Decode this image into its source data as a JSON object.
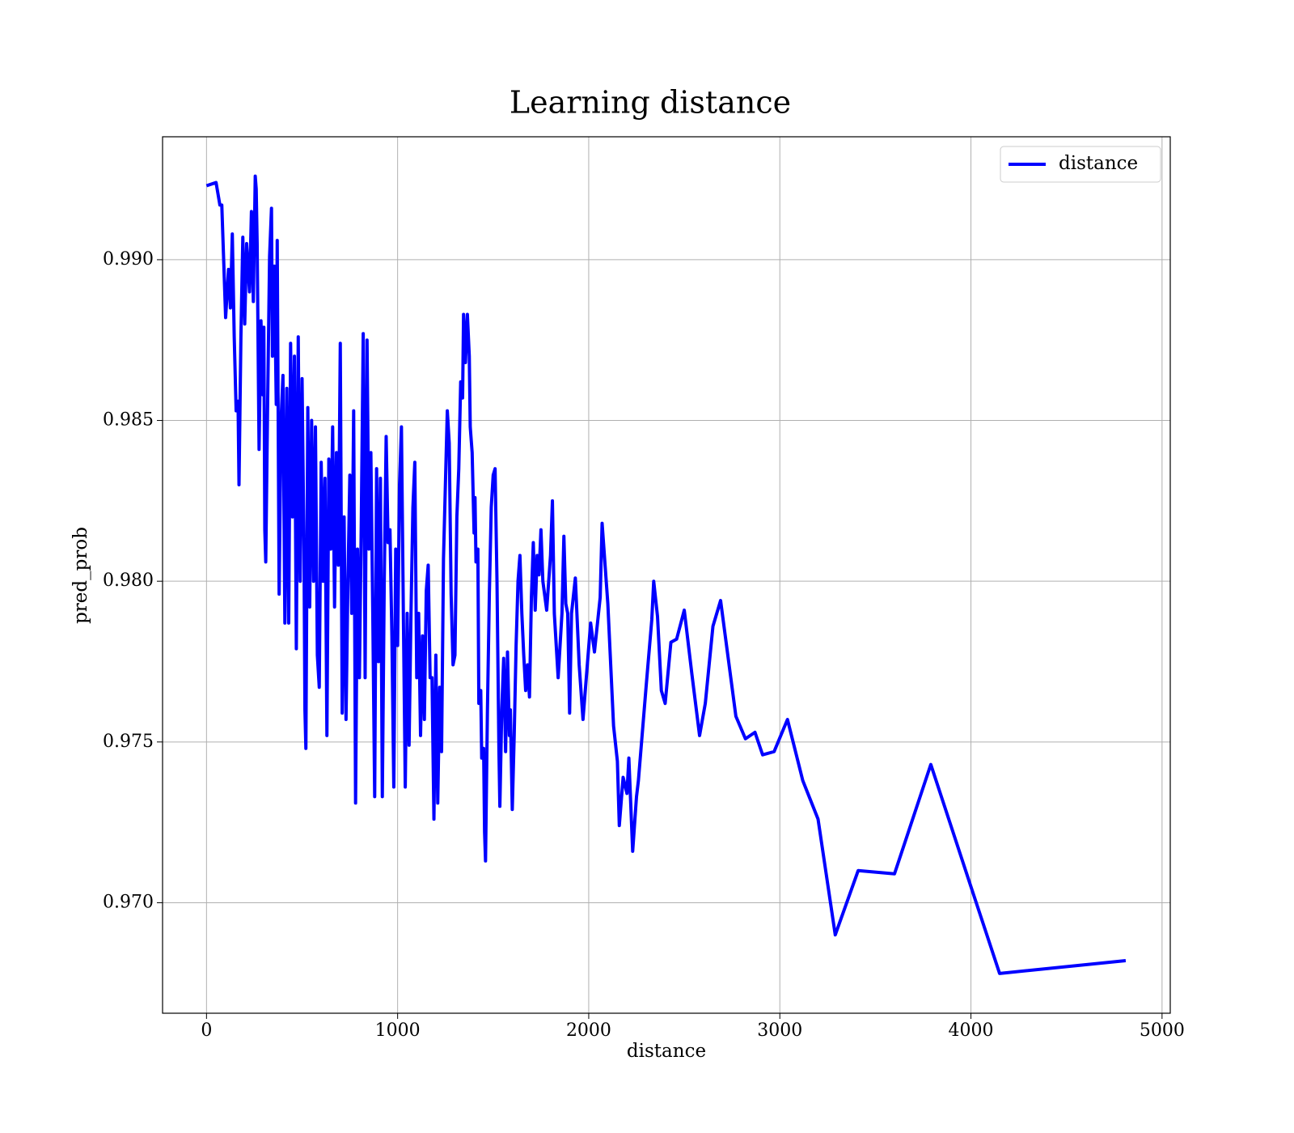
{
  "chart_data": {
    "type": "line",
    "title": "Learning distance",
    "x_label": "distance",
    "y_label": "pred_prob",
    "x": [
      0,
      50,
      70,
      80,
      100,
      115,
      125,
      135,
      145,
      155,
      165,
      170,
      180,
      190,
      200,
      210,
      225,
      235,
      245,
      255,
      260,
      265,
      275,
      285,
      295,
      300,
      305,
      310,
      320,
      330,
      340,
      345,
      355,
      365,
      370,
      380,
      390,
      400,
      410,
      420,
      430,
      440,
      450,
      460,
      470,
      480,
      490,
      500,
      510,
      515,
      520,
      530,
      540,
      550,
      560,
      570,
      580,
      590,
      600,
      610,
      620,
      630,
      640,
      650,
      660,
      670,
      680,
      690,
      700,
      710,
      720,
      730,
      740,
      750,
      760,
      770,
      780,
      790,
      800,
      810,
      820,
      830,
      840,
      850,
      860,
      870,
      880,
      890,
      900,
      910,
      920,
      930,
      940,
      950,
      960,
      970,
      980,
      990,
      1000,
      1010,
      1020,
      1030,
      1040,
      1050,
      1060,
      1070,
      1080,
      1090,
      1100,
      1110,
      1120,
      1130,
      1140,
      1150,
      1160,
      1170,
      1180,
      1190,
      1200,
      1210,
      1220,
      1230,
      1240,
      1250,
      1260,
      1270,
      1280,
      1290,
      1300,
      1310,
      1320,
      1330,
      1340,
      1345,
      1355,
      1365,
      1375,
      1380,
      1390,
      1400,
      1405,
      1410,
      1420,
      1425,
      1435,
      1440,
      1450,
      1455,
      1460,
      1470,
      1480,
      1490,
      1500,
      1510,
      1520,
      1530,
      1535,
      1545,
      1555,
      1565,
      1575,
      1585,
      1590,
      1600,
      1610,
      1620,
      1630,
      1640,
      1650,
      1660,
      1670,
      1680,
      1690,
      1700,
      1710,
      1720,
      1730,
      1740,
      1750,
      1760,
      1780,
      1800,
      1810,
      1820,
      1830,
      1840,
      1860,
      1870,
      1880,
      1890,
      1900,
      1910,
      1930,
      1950,
      1970,
      2010,
      2030,
      2060,
      2070,
      2100,
      2130,
      2150,
      2160,
      2180,
      2200,
      2210,
      2230,
      2250,
      2260,
      2300,
      2330,
      2340,
      2360,
      2380,
      2400,
      2430,
      2460,
      2500,
      2540,
      2580,
      2610,
      2650,
      2690,
      2770,
      2820,
      2870,
      2910,
      2970,
      3040,
      3120,
      3200,
      3290,
      3410,
      3600,
      3790,
      4000,
      4150,
      4810
    ],
    "series": [
      {
        "name": "distance",
        "color": "#0000ff",
        "values": [
          0.9923,
          0.9924,
          0.9917,
          0.9917,
          0.9882,
          0.9897,
          0.9885,
          0.9908,
          0.9876,
          0.9853,
          0.9856,
          0.983,
          0.9876,
          0.9907,
          0.988,
          0.9905,
          0.989,
          0.9915,
          0.9887,
          0.9926,
          0.9922,
          0.9905,
          0.9841,
          0.9881,
          0.9858,
          0.9879,
          0.9816,
          0.9806,
          0.9856,
          0.9901,
          0.9916,
          0.987,
          0.9898,
          0.9855,
          0.9906,
          0.9796,
          0.985,
          0.9864,
          0.9787,
          0.986,
          0.9787,
          0.9874,
          0.982,
          0.987,
          0.9779,
          0.9876,
          0.98,
          0.9863,
          0.981,
          0.976,
          0.9748,
          0.9854,
          0.9792,
          0.985,
          0.98,
          0.9848,
          0.9777,
          0.9767,
          0.9837,
          0.98,
          0.9832,
          0.9752,
          0.9838,
          0.981,
          0.9848,
          0.9792,
          0.984,
          0.9805,
          0.9874,
          0.9759,
          0.982,
          0.9757,
          0.98,
          0.9833,
          0.979,
          0.9853,
          0.9731,
          0.981,
          0.977,
          0.9819,
          0.9877,
          0.977,
          0.9875,
          0.981,
          0.984,
          0.979,
          0.9733,
          0.9835,
          0.9775,
          0.9832,
          0.9733,
          0.98,
          0.9845,
          0.9812,
          0.9816,
          0.9783,
          0.9736,
          0.981,
          0.978,
          0.983,
          0.9848,
          0.979,
          0.9736,
          0.979,
          0.9749,
          0.979,
          0.9823,
          0.9837,
          0.977,
          0.979,
          0.9752,
          0.9783,
          0.9757,
          0.9797,
          0.9805,
          0.977,
          0.977,
          0.9726,
          0.9777,
          0.9731,
          0.9767,
          0.9747,
          0.9807,
          0.983,
          0.9853,
          0.9843,
          0.9796,
          0.9774,
          0.9777,
          0.982,
          0.9835,
          0.9862,
          0.9857,
          0.9883,
          0.9868,
          0.9883,
          0.987,
          0.9848,
          0.984,
          0.9815,
          0.9826,
          0.9806,
          0.981,
          0.9762,
          0.9766,
          0.9745,
          0.9748,
          0.9722,
          0.9713,
          0.976,
          0.9796,
          0.9823,
          0.9833,
          0.9835,
          0.98,
          0.9748,
          0.973,
          0.976,
          0.9776,
          0.9747,
          0.9778,
          0.9752,
          0.976,
          0.9729,
          0.9752,
          0.978,
          0.98,
          0.9808,
          0.979,
          0.9777,
          0.9766,
          0.9774,
          0.9764,
          0.9795,
          0.9812,
          0.9791,
          0.9808,
          0.9802,
          0.9816,
          0.98,
          0.9791,
          0.9808,
          0.9825,
          0.979,
          0.978,
          0.977,
          0.979,
          0.9814,
          0.9793,
          0.979,
          0.9759,
          0.979,
          0.9801,
          0.9774,
          0.9757,
          0.9787,
          0.9778,
          0.9795,
          0.9818,
          0.9793,
          0.9755,
          0.9744,
          0.9724,
          0.9739,
          0.9734,
          0.9745,
          0.9716,
          0.9733,
          0.9738,
          0.9767,
          0.9788,
          0.98,
          0.9789,
          0.9766,
          0.9762,
          0.9781,
          0.9782,
          0.9791,
          0.9771,
          0.9752,
          0.9762,
          0.9786,
          0.9794,
          0.9758,
          0.9751,
          0.9753,
          0.9746,
          0.9747,
          0.9757,
          0.9738,
          0.9726,
          0.969,
          0.971,
          0.9709,
          0.9743,
          0.9705,
          0.9678,
          0.9682
        ]
      }
    ],
    "xlim": [
      -230,
      5043
    ],
    "ylim": [
      0.966563,
      0.993824
    ],
    "xticks": [
      0,
      1000,
      2000,
      3000,
      4000,
      5000
    ],
    "yticks": [
      {
        "value": 0.97,
        "label": "0.970"
      },
      {
        "value": 0.975,
        "label": "0.975"
      },
      {
        "value": 0.98,
        "label": "0.980"
      },
      {
        "value": 0.985,
        "label": "0.985"
      },
      {
        "value": 0.99,
        "label": "0.990"
      }
    ],
    "grid": true,
    "legend": "upper right"
  }
}
